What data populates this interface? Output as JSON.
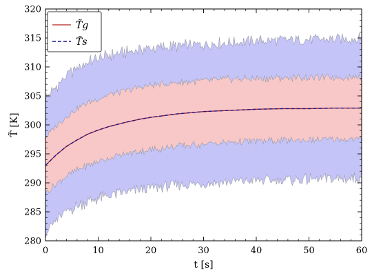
{
  "chart_data": {
    "type": "line",
    "xlabel": "t [s]",
    "ylabel": "T̃ [K]",
    "xlim": [
      0,
      60
    ],
    "ylim": [
      280,
      320
    ],
    "xticks": [
      0,
      10,
      20,
      30,
      40,
      50,
      60
    ],
    "yticks": [
      280,
      285,
      290,
      295,
      300,
      305,
      310,
      315,
      320
    ],
    "grid": false,
    "legend_position": "top-left",
    "x": [
      0,
      2,
      4,
      6,
      8,
      10,
      12,
      15,
      18,
      20,
      25,
      30,
      35,
      40,
      45,
      50,
      55,
      60
    ],
    "series": [
      {
        "name": "T̃g",
        "style": "solid",
        "color": "#b22222",
        "values": [
          293.0,
          294.8,
          296.3,
          297.4,
          298.4,
          299.1,
          299.7,
          300.4,
          301.0,
          301.3,
          301.9,
          302.3,
          302.5,
          302.7,
          302.8,
          302.8,
          302.9,
          302.9
        ]
      },
      {
        "name": "T̃s",
        "style": "dashed",
        "color": "#1a1a8c",
        "values": [
          293.0,
          294.8,
          296.3,
          297.4,
          298.4,
          299.1,
          299.7,
          300.4,
          301.0,
          301.3,
          301.9,
          302.3,
          302.5,
          302.7,
          302.8,
          302.8,
          302.9,
          302.9
        ]
      }
    ],
    "bands": [
      {
        "name": "outer-band",
        "color": "#c4c4f8",
        "upper": [
          304.5,
          306.5,
          308.5,
          309.8,
          310.8,
          311.4,
          312.0,
          312.5,
          313.0,
          313.2,
          313.6,
          313.9,
          314.2,
          314.5,
          314.6,
          314.7,
          314.8,
          314.9
        ],
        "lower": [
          281.5,
          283.5,
          285.0,
          286.0,
          286.8,
          287.3,
          287.8,
          288.3,
          288.8,
          289.1,
          289.6,
          289.9,
          290.2,
          290.4,
          290.5,
          290.6,
          290.7,
          290.8
        ]
      },
      {
        "name": "inner-band",
        "color": "#f8c8c8",
        "upper": [
          297.8,
          299.8,
          301.5,
          302.8,
          303.8,
          304.5,
          305.2,
          305.8,
          306.5,
          306.8,
          307.3,
          307.6,
          307.9,
          308.0,
          308.1,
          308.2,
          308.2,
          308.3
        ],
        "lower": [
          288.2,
          289.8,
          291.2,
          292.2,
          293.0,
          293.7,
          294.3,
          294.9,
          295.5,
          295.7,
          296.3,
          296.7,
          297.0,
          297.2,
          297.3,
          297.4,
          297.5,
          297.5
        ]
      }
    ],
    "colors": {
      "band_edge": "#9a9aa4",
      "axis": "#000000"
    }
  }
}
